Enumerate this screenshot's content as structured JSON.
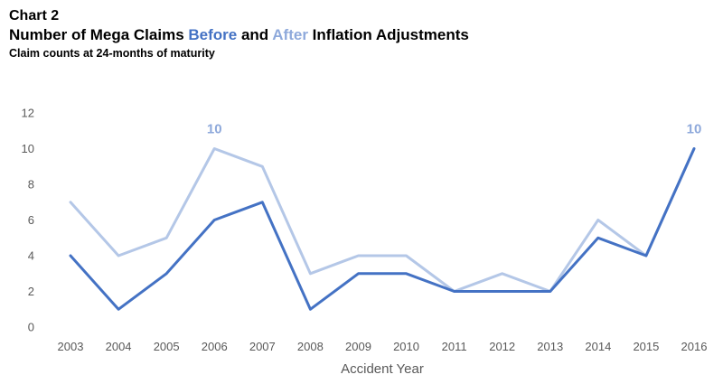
{
  "header": {
    "chart_label": "Chart 2",
    "title_parts": [
      "Number of Mega Claims ",
      "Before",
      " and ",
      "After",
      " Inflation Adjustments"
    ],
    "subtitle": "Claim counts at 24-months of maturity"
  },
  "colors": {
    "before": "#4472C4",
    "after": "#B4C7E7",
    "after_label": "#8EA9DB"
  },
  "chart_data": {
    "type": "line",
    "title": "Number of Mega Claims Before and After Inflation Adjustments",
    "subtitle": "Claim counts at 24-months of maturity",
    "xlabel": "Accident Year",
    "ylabel": "",
    "ylim": [
      0,
      12
    ],
    "yticks": [
      0,
      2,
      4,
      6,
      8,
      10,
      12
    ],
    "grid": false,
    "legend": "none (series identified by colored words in title)",
    "categories": [
      "2003",
      "2004",
      "2005",
      "2006",
      "2007",
      "2008",
      "2009",
      "2010",
      "2011",
      "2012",
      "2013",
      "2014",
      "2015",
      "2016"
    ],
    "series": [
      {
        "name": "After",
        "values": [
          7,
          4,
          5,
          10,
          9,
          3,
          4,
          4,
          2,
          3,
          2,
          6,
          4,
          10
        ]
      },
      {
        "name": "Before",
        "values": [
          4,
          1,
          3,
          6,
          7,
          1,
          3,
          3,
          2,
          2,
          2,
          5,
          4,
          10
        ]
      }
    ],
    "annotations": [
      {
        "series": "After",
        "category": "2006",
        "text": "10"
      },
      {
        "series": "Before",
        "category": "2016",
        "text": "10"
      }
    ]
  }
}
